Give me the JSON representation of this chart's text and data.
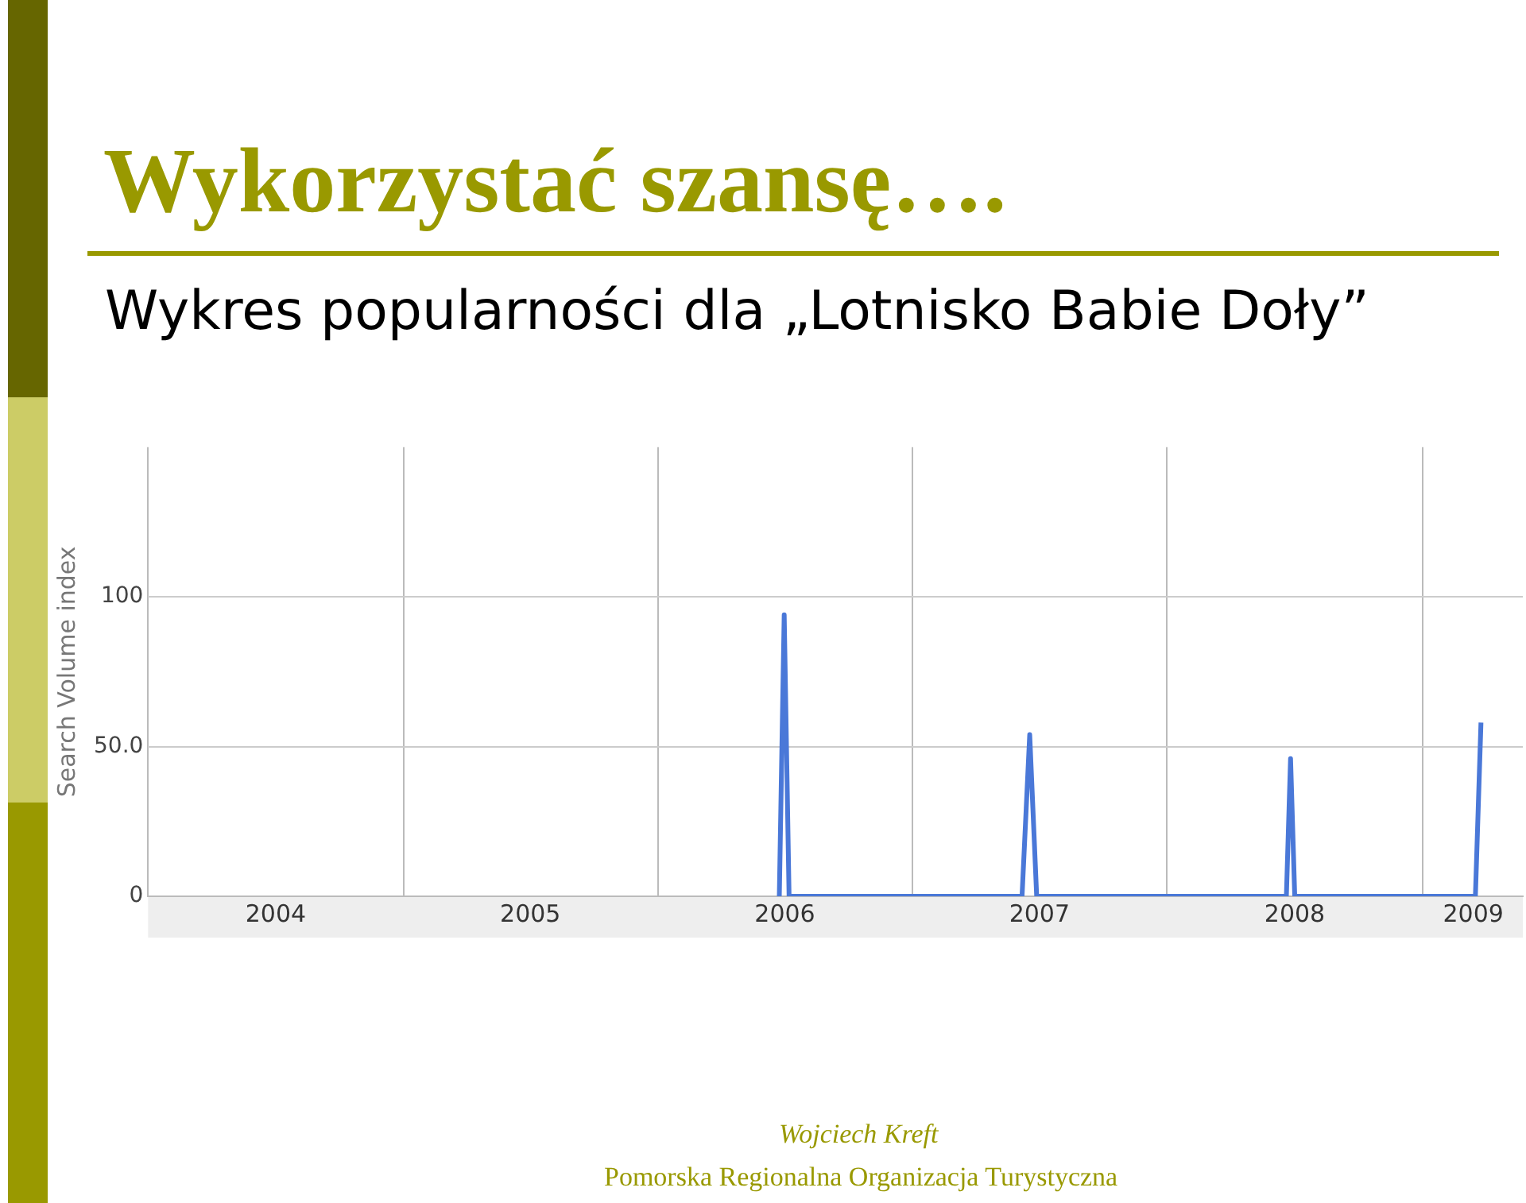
{
  "chart_data": {
    "type": "line",
    "title": "Wykorzystać szansę….",
    "subtitle": "Wykres popularności dla „Lotnisko Babie Doły”",
    "ylabel": "Search Volume index",
    "annotations": [
      "Wojciech Kreft",
      "Pomorska Regionalna Organizacja Turystyczna"
    ],
    "series": [
      {
        "color": "#4a78d8",
        "x": [
          "2006-06-24",
          "2006-07-01",
          "2006-07-08",
          "2007-06-07",
          "2007-06-18",
          "2007-06-28",
          "2008-06-20",
          "2008-06-26",
          "2008-07-02",
          "2009-03-18",
          "2009-03-26"
        ],
        "values": [
          0,
          94,
          0,
          0,
          54,
          0,
          0,
          46,
          0,
          0,
          58
        ]
      }
    ],
    "xlim": [
      "2004-01-01",
      "2009-05-25"
    ],
    "xticks": [
      {
        "value": "2004-01-01",
        "label": null
      },
      {
        "value": "2004-07-02",
        "label": "2004"
      },
      {
        "value": "2005-01-01",
        "label": null
      },
      {
        "value": "2005-07-02",
        "label": "2005"
      },
      {
        "value": "2006-01-01",
        "label": null
      },
      {
        "value": "2006-07-02",
        "label": "2006"
      },
      {
        "value": "2007-01-01",
        "label": null
      },
      {
        "value": "2007-07-02",
        "label": "2007"
      },
      {
        "value": "2008-01-01",
        "label": null
      },
      {
        "value": "2008-07-02",
        "label": "2008"
      },
      {
        "value": "2009-01-01",
        "label": null
      },
      {
        "value": "2009-03-15",
        "label": "2009"
      }
    ],
    "ylim": [
      0,
      150
    ],
    "yticks": [
      0,
      {
        "value": 50,
        "label": "50.0"
      },
      100
    ],
    "grid": true,
    "legend": false,
    "marker": "none",
    "line_style": "solid"
  }
}
